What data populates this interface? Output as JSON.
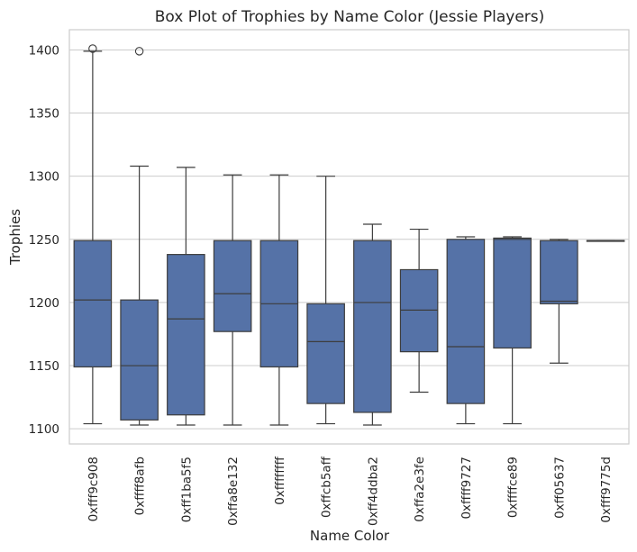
{
  "chart_data": {
    "type": "box",
    "title": "Box Plot of Trophies by Name Color (Jessie Players)",
    "xlabel": "Name Color",
    "ylabel": "Trophies",
    "ylim": [
      1088,
      1416
    ],
    "yticks": [
      1100,
      1150,
      1200,
      1250,
      1300,
      1350,
      1400
    ],
    "grid": "horizontal",
    "box_color": "#5572a7",
    "line_color": "#3d3d3d",
    "categories": [
      "0xfff9c908",
      "0xffff8afb",
      "0xff1ba5f5",
      "0xffa8e132",
      "0xffffffff",
      "0xffcb5aff",
      "0xff4ddba2",
      "0xffa2e3fe",
      "0xffff9727",
      "0xffffce89",
      "0xff05637",
      "0xfff9775d"
    ],
    "boxes": [
      {
        "whislo": 1104,
        "q1": 1149,
        "med": 1202,
        "q3": 1249,
        "whishi": 1399,
        "fliers": [
          1401
        ]
      },
      {
        "whislo": 1103,
        "q1": 1107,
        "med": 1150,
        "q3": 1202,
        "whishi": 1308,
        "fliers": [
          1399
        ]
      },
      {
        "whislo": 1103,
        "q1": 1111,
        "med": 1187,
        "q3": 1238,
        "whishi": 1307,
        "fliers": []
      },
      {
        "whislo": 1103,
        "q1": 1177,
        "med": 1207,
        "q3": 1249,
        "whishi": 1301,
        "fliers": []
      },
      {
        "whislo": 1103,
        "q1": 1149,
        "med": 1199,
        "q3": 1249,
        "whishi": 1301,
        "fliers": []
      },
      {
        "whislo": 1104,
        "q1": 1120,
        "med": 1169,
        "q3": 1199,
        "whishi": 1300,
        "fliers": []
      },
      {
        "whislo": 1103,
        "q1": 1113,
        "med": 1200,
        "q3": 1249,
        "whishi": 1262,
        "fliers": []
      },
      {
        "whislo": 1129,
        "q1": 1161,
        "med": 1194,
        "q3": 1226,
        "whishi": 1258,
        "fliers": []
      },
      {
        "whislo": 1104,
        "q1": 1120,
        "med": 1165,
        "q3": 1250,
        "whishi": 1252,
        "fliers": []
      },
      {
        "whislo": 1104,
        "q1": 1164,
        "med": 1250,
        "q3": 1251,
        "whishi": 1252,
        "fliers": []
      },
      {
        "whislo": 1152,
        "q1": 1199,
        "med": 1201,
        "q3": 1249,
        "whishi": 1250,
        "fliers": []
      },
      {
        "whislo": 1249,
        "q1": 1249,
        "med": 1249,
        "q3": 1249,
        "whishi": 1249,
        "fliers": []
      }
    ]
  }
}
